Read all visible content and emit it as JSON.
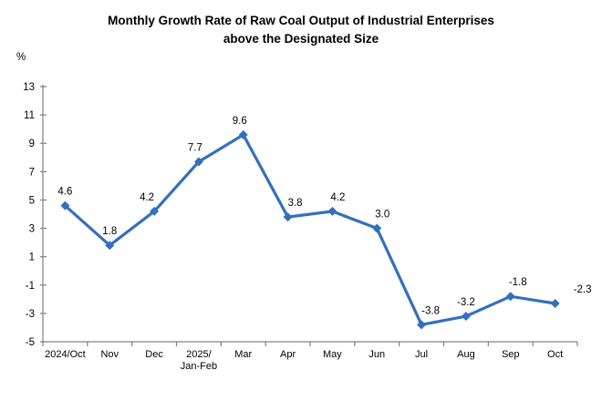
{
  "chart_data": {
    "type": "line",
    "title": "Monthly Growth Rate of Raw Coal Output of Industrial Enterprises above the Designated Size",
    "title_lines": [
      "Monthly Growth Rate of Raw Coal Output of Industrial Enterprises",
      "above the Designated Size"
    ],
    "y_unit": "%",
    "categories": [
      "2024/Oct",
      "Nov",
      "Dec",
      "2025/\nJan-Feb",
      "Mar",
      "Apr",
      "May",
      "Jun",
      "Jul",
      "Aug",
      "Sep",
      "Oct"
    ],
    "values": [
      4.6,
      1.8,
      4.2,
      7.7,
      9.6,
      3.8,
      4.2,
      3.0,
      -3.8,
      -3.2,
      -1.8,
      -2.3
    ],
    "value_labels": [
      "4.6",
      "1.8",
      "4.2",
      "7.7",
      "9.6",
      "3.8",
      "4.2",
      "3.0",
      "-3.8",
      "-3.2",
      "-1.8",
      "-2.3"
    ],
    "ylim": [
      -5,
      13
    ],
    "y_tick_step": 2,
    "grid": false,
    "legend": "none",
    "line_color": "#3370BD",
    "axis_color": "#808080",
    "text_color": "#000000"
  }
}
